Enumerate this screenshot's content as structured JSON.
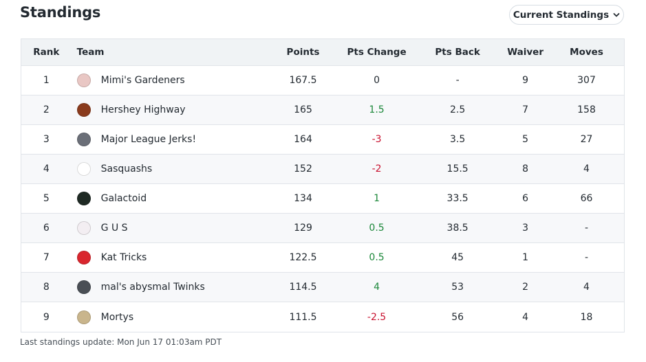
{
  "header": {
    "title": "Standings",
    "dropdown_label": "Current Standings"
  },
  "columns": {
    "rank": "Rank",
    "team": "Team",
    "points": "Points",
    "pts_change": "Pts Change",
    "pts_back": "Pts Back",
    "waiver": "Waiver",
    "moves": "Moves"
  },
  "rows": [
    {
      "rank": "1",
      "team": "Mimi's Gardeners",
      "points": "167.5",
      "pts_change": "0",
      "pts_back": "-",
      "waiver": "9",
      "moves": "307",
      "avatar_color": "#e9c7c4",
      "avatar_icon": "team-avatar-icon"
    },
    {
      "rank": "2",
      "team": "Hershey Highway",
      "points": "165",
      "pts_change": "1.5",
      "pts_back": "2.5",
      "waiver": "7",
      "moves": "158",
      "avatar_color": "#8a3b1d",
      "avatar_icon": "team-avatar-icon"
    },
    {
      "rank": "3",
      "team": "Major League Jerks!",
      "points": "164",
      "pts_change": "-3",
      "pts_back": "3.5",
      "waiver": "5",
      "moves": "27",
      "avatar_color": "#6b6f78",
      "avatar_icon": "team-avatar-icon"
    },
    {
      "rank": "4",
      "team": "Sasquashs",
      "points": "152",
      "pts_change": "-2",
      "pts_back": "15.5",
      "waiver": "8",
      "moves": "4",
      "avatar_color": "#ffffff",
      "avatar_icon": "team-avatar-icon"
    },
    {
      "rank": "5",
      "team": "Galactoid",
      "points": "134",
      "pts_change": "1",
      "pts_back": "33.5",
      "waiver": "6",
      "moves": "66",
      "avatar_color": "#1f2a24",
      "avatar_icon": "team-avatar-icon"
    },
    {
      "rank": "6",
      "team": "G U S",
      "points": "129",
      "pts_change": "0.5",
      "pts_back": "38.5",
      "waiver": "3",
      "moves": "-",
      "avatar_color": "#f3eef2",
      "avatar_icon": "team-avatar-icon"
    },
    {
      "rank": "7",
      "team": "Kat Tricks",
      "points": "122.5",
      "pts_change": "0.5",
      "pts_back": "45",
      "waiver": "1",
      "moves": "-",
      "avatar_color": "#d9262e",
      "avatar_icon": "team-avatar-icon"
    },
    {
      "rank": "8",
      "team": "mal's abysmal Twinks",
      "points": "114.5",
      "pts_change": "4",
      "pts_back": "53",
      "waiver": "2",
      "moves": "4",
      "avatar_color": "#4a4f55",
      "avatar_icon": "team-avatar-icon"
    },
    {
      "rank": "9",
      "team": "Mortys",
      "points": "111.5",
      "pts_change": "-2.5",
      "pts_back": "56",
      "waiver": "4",
      "moves": "18",
      "avatar_color": "#c9b58c",
      "avatar_icon": "team-avatar-icon"
    }
  ],
  "footer": {
    "last_update": "Last standings update: Mon Jun 17 01:03am PDT"
  },
  "colors": {
    "positive": "#1b8739",
    "negative": "#c8102e",
    "header_bg": "#f0f3f5"
  }
}
